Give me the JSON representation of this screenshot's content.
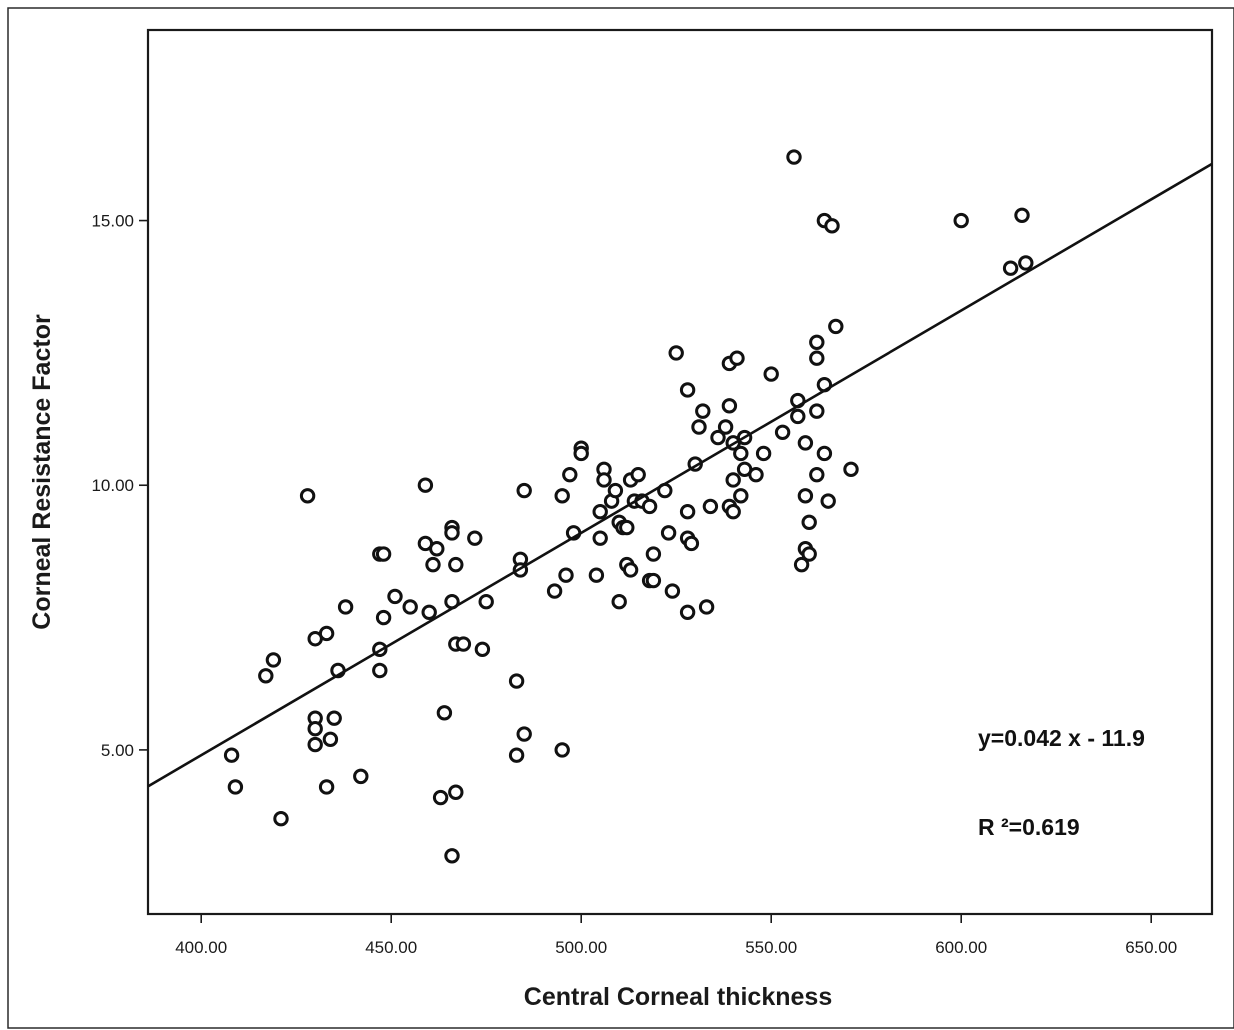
{
  "chart_data": {
    "type": "scatter",
    "title": "",
    "xlabel": "Central Corneal thickness",
    "ylabel": "Corneal Resistance Factor",
    "xlim": [
      386,
      666
    ],
    "ylim": [
      1.9,
      18.6
    ],
    "x_ticks": [
      {
        "value": 400,
        "label": "400.00"
      },
      {
        "value": 450,
        "label": "450.00"
      },
      {
        "value": 500,
        "label": "500.00"
      },
      {
        "value": 550,
        "label": "550.00"
      },
      {
        "value": 600,
        "label": "600.00"
      },
      {
        "value": 650,
        "label": "650.00"
      }
    ],
    "y_ticks": [
      {
        "value": 5,
        "label": "5.00"
      },
      {
        "value": 10,
        "label": "10.00"
      },
      {
        "value": 15,
        "label": "15.00"
      }
    ],
    "grid": false,
    "marker": "open-circle",
    "fit_line": {
      "slope": 0.042,
      "intercept": -11.9
    },
    "annotations": {
      "equation": "y=0.042 x - 11.9",
      "r_squared": "R ²=0.619"
    },
    "points": [
      {
        "x": 408,
        "y": 4.9
      },
      {
        "x": 409,
        "y": 4.3
      },
      {
        "x": 417,
        "y": 6.4
      },
      {
        "x": 419,
        "y": 6.7
      },
      {
        "x": 421,
        "y": 3.7
      },
      {
        "x": 428,
        "y": 9.8
      },
      {
        "x": 430,
        "y": 7.1
      },
      {
        "x": 430,
        "y": 5.6
      },
      {
        "x": 430,
        "y": 5.4
      },
      {
        "x": 430,
        "y": 5.1
      },
      {
        "x": 433,
        "y": 7.2
      },
      {
        "x": 433,
        "y": 4.3
      },
      {
        "x": 434,
        "y": 5.2
      },
      {
        "x": 435,
        "y": 5.6
      },
      {
        "x": 436,
        "y": 6.5
      },
      {
        "x": 438,
        "y": 7.7
      },
      {
        "x": 442,
        "y": 4.5
      },
      {
        "x": 447,
        "y": 8.7
      },
      {
        "x": 447,
        "y": 6.9
      },
      {
        "x": 447,
        "y": 6.5
      },
      {
        "x": 448,
        "y": 8.7
      },
      {
        "x": 448,
        "y": 7.5
      },
      {
        "x": 451,
        "y": 7.9
      },
      {
        "x": 455,
        "y": 7.7
      },
      {
        "x": 459,
        "y": 10.0
      },
      {
        "x": 459,
        "y": 8.9
      },
      {
        "x": 460,
        "y": 7.6
      },
      {
        "x": 461,
        "y": 8.5
      },
      {
        "x": 462,
        "y": 8.8
      },
      {
        "x": 463,
        "y": 4.1
      },
      {
        "x": 464,
        "y": 5.7
      },
      {
        "x": 466,
        "y": 9.2
      },
      {
        "x": 466,
        "y": 9.1
      },
      {
        "x": 466,
        "y": 7.8
      },
      {
        "x": 466,
        "y": 3.0
      },
      {
        "x": 467,
        "y": 8.5
      },
      {
        "x": 467,
        "y": 7.0
      },
      {
        "x": 467,
        "y": 4.2
      },
      {
        "x": 469,
        "y": 7.0
      },
      {
        "x": 472,
        "y": 9.0
      },
      {
        "x": 474,
        "y": 6.9
      },
      {
        "x": 475,
        "y": 7.8
      },
      {
        "x": 483,
        "y": 6.3
      },
      {
        "x": 483,
        "y": 4.9
      },
      {
        "x": 484,
        "y": 8.6
      },
      {
        "x": 484,
        "y": 8.4
      },
      {
        "x": 485,
        "y": 9.9
      },
      {
        "x": 485,
        "y": 5.3
      },
      {
        "x": 493,
        "y": 8.0
      },
      {
        "x": 495,
        "y": 9.8
      },
      {
        "x": 495,
        "y": 5.0
      },
      {
        "x": 496,
        "y": 8.3
      },
      {
        "x": 497,
        "y": 10.2
      },
      {
        "x": 498,
        "y": 9.1
      },
      {
        "x": 500,
        "y": 10.7
      },
      {
        "x": 500,
        "y": 10.6
      },
      {
        "x": 504,
        "y": 8.3
      },
      {
        "x": 505,
        "y": 9.5
      },
      {
        "x": 505,
        "y": 9.0
      },
      {
        "x": 506,
        "y": 10.3
      },
      {
        "x": 506,
        "y": 10.1
      },
      {
        "x": 508,
        "y": 9.7
      },
      {
        "x": 509,
        "y": 9.9
      },
      {
        "x": 510,
        "y": 9.3
      },
      {
        "x": 510,
        "y": 7.8
      },
      {
        "x": 511,
        "y": 9.2
      },
      {
        "x": 512,
        "y": 9.2
      },
      {
        "x": 512,
        "y": 8.5
      },
      {
        "x": 513,
        "y": 10.1
      },
      {
        "x": 513,
        "y": 8.4
      },
      {
        "x": 514,
        "y": 9.7
      },
      {
        "x": 515,
        "y": 10.2
      },
      {
        "x": 516,
        "y": 9.7
      },
      {
        "x": 518,
        "y": 9.6
      },
      {
        "x": 518,
        "y": 8.2
      },
      {
        "x": 519,
        "y": 8.7
      },
      {
        "x": 519,
        "y": 8.2
      },
      {
        "x": 522,
        "y": 9.9
      },
      {
        "x": 523,
        "y": 9.1
      },
      {
        "x": 524,
        "y": 8.0
      },
      {
        "x": 525,
        "y": 12.5
      },
      {
        "x": 528,
        "y": 11.8
      },
      {
        "x": 528,
        "y": 9.5
      },
      {
        "x": 528,
        "y": 9.0
      },
      {
        "x": 528,
        "y": 7.6
      },
      {
        "x": 529,
        "y": 8.9
      },
      {
        "x": 530,
        "y": 10.4
      },
      {
        "x": 531,
        "y": 11.1
      },
      {
        "x": 532,
        "y": 11.4
      },
      {
        "x": 533,
        "y": 7.7
      },
      {
        "x": 534,
        "y": 9.6
      },
      {
        "x": 536,
        "y": 10.9
      },
      {
        "x": 538,
        "y": 11.1
      },
      {
        "x": 539,
        "y": 12.3
      },
      {
        "x": 539,
        "y": 11.5
      },
      {
        "x": 539,
        "y": 9.6
      },
      {
        "x": 540,
        "y": 10.8
      },
      {
        "x": 540,
        "y": 10.1
      },
      {
        "x": 540,
        "y": 9.5
      },
      {
        "x": 541,
        "y": 12.4
      },
      {
        "x": 542,
        "y": 10.6
      },
      {
        "x": 542,
        "y": 9.8
      },
      {
        "x": 543,
        "y": 10.9
      },
      {
        "x": 543,
        "y": 10.3
      },
      {
        "x": 546,
        "y": 10.2
      },
      {
        "x": 548,
        "y": 10.6
      },
      {
        "x": 550,
        "y": 12.1
      },
      {
        "x": 553,
        "y": 11.0
      },
      {
        "x": 556,
        "y": 16.2
      },
      {
        "x": 557,
        "y": 11.6
      },
      {
        "x": 557,
        "y": 11.3
      },
      {
        "x": 558,
        "y": 8.5
      },
      {
        "x": 559,
        "y": 10.8
      },
      {
        "x": 559,
        "y": 9.8
      },
      {
        "x": 559,
        "y": 8.8
      },
      {
        "x": 560,
        "y": 9.3
      },
      {
        "x": 560,
        "y": 8.7
      },
      {
        "x": 562,
        "y": 12.7
      },
      {
        "x": 562,
        "y": 12.4
      },
      {
        "x": 562,
        "y": 11.4
      },
      {
        "x": 562,
        "y": 10.2
      },
      {
        "x": 564,
        "y": 15.0
      },
      {
        "x": 564,
        "y": 11.9
      },
      {
        "x": 564,
        "y": 10.6
      },
      {
        "x": 565,
        "y": 9.7
      },
      {
        "x": 566,
        "y": 14.9
      },
      {
        "x": 567,
        "y": 13.0
      },
      {
        "x": 571,
        "y": 10.3
      },
      {
        "x": 600,
        "y": 15.0
      },
      {
        "x": 613,
        "y": 14.1
      },
      {
        "x": 616,
        "y": 15.1
      },
      {
        "x": 617,
        "y": 14.2
      }
    ]
  }
}
